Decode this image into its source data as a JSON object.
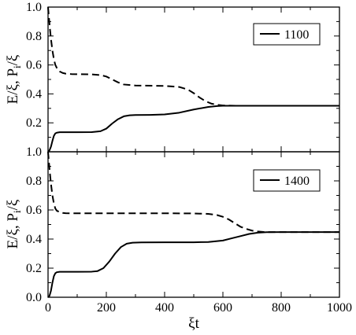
{
  "chart_data": [
    {
      "type": "line",
      "panel": "top",
      "xlim": [
        0,
        1000
      ],
      "ylim": [
        0,
        1.0
      ],
      "yticks": [
        "1.0",
        "0.8",
        "0.6",
        "0.4",
        "0.2"
      ],
      "ylabel_parts": {
        "a": "E/ξ,  P",
        "sub": "i",
        "b": "/ξ"
      },
      "legend": {
        "label": "1100",
        "placement": "top-right"
      },
      "grid": false,
      "series": [
        {
          "style": "dashed",
          "x": [
            0,
            3,
            6,
            10,
            15,
            20,
            25,
            30,
            40,
            50,
            60,
            80,
            100,
            150,
            180,
            200,
            220,
            240,
            260,
            300,
            400,
            450,
            480,
            500,
            520,
            540,
            560,
            580,
            600,
            650,
            700,
            800,
            900,
            1000
          ],
          "y": [
            1.0,
            0.93,
            0.86,
            0.78,
            0.7,
            0.64,
            0.6,
            0.58,
            0.555,
            0.545,
            0.54,
            0.537,
            0.536,
            0.535,
            0.53,
            0.52,
            0.5,
            0.48,
            0.465,
            0.458,
            0.455,
            0.448,
            0.43,
            0.405,
            0.375,
            0.35,
            0.333,
            0.325,
            0.32,
            0.318,
            0.318,
            0.318,
            0.318,
            0.318
          ]
        },
        {
          "style": "solid",
          "x": [
            0,
            5,
            10,
            15,
            20,
            25,
            30,
            40,
            50,
            60,
            100,
            150,
            180,
            200,
            220,
            240,
            260,
            280,
            300,
            350,
            400,
            450,
            500,
            550,
            580,
            600,
            650,
            700,
            800,
            900,
            1000
          ],
          "y": [
            0.0,
            0.01,
            0.035,
            0.075,
            0.11,
            0.127,
            0.132,
            0.135,
            0.135,
            0.135,
            0.135,
            0.136,
            0.142,
            0.16,
            0.195,
            0.225,
            0.245,
            0.252,
            0.254,
            0.255,
            0.258,
            0.27,
            0.292,
            0.31,
            0.316,
            0.318,
            0.318,
            0.318,
            0.318,
            0.318,
            0.318
          ]
        }
      ]
    },
    {
      "type": "line",
      "panel": "bottom",
      "xlim": [
        0,
        1000
      ],
      "ylim": [
        0,
        1.0
      ],
      "yticks": [
        "1.0",
        "0.8",
        "0.6",
        "0.4",
        "0.2",
        "0.0"
      ],
      "xticks": [
        "0",
        "200",
        "400",
        "600",
        "800",
        "1000"
      ],
      "xlabel": "ξt",
      "ylabel_parts": {
        "a": "E/ξ,  P",
        "sub": "i",
        "b": "/ξ"
      },
      "legend": {
        "label": "1400",
        "placement": "top-right"
      },
      "grid": false,
      "series": [
        {
          "style": "dashed",
          "x": [
            0,
            3,
            6,
            10,
            15,
            20,
            25,
            30,
            40,
            50,
            60,
            80,
            100,
            200,
            300,
            400,
            500,
            550,
            580,
            600,
            620,
            640,
            660,
            680,
            700,
            720,
            740,
            760,
            800,
            900,
            1000
          ],
          "y": [
            1.0,
            0.93,
            0.86,
            0.78,
            0.7,
            0.645,
            0.61,
            0.595,
            0.585,
            0.58,
            0.578,
            0.577,
            0.577,
            0.577,
            0.577,
            0.577,
            0.576,
            0.573,
            0.565,
            0.553,
            0.535,
            0.51,
            0.485,
            0.47,
            0.458,
            0.452,
            0.449,
            0.448,
            0.448,
            0.448,
            0.448
          ]
        },
        {
          "style": "solid",
          "x": [
            0,
            5,
            10,
            15,
            20,
            25,
            30,
            40,
            50,
            60,
            100,
            150,
            170,
            190,
            210,
            230,
            250,
            270,
            290,
            320,
            400,
            500,
            550,
            600,
            630,
            660,
            690,
            720,
            750,
            800,
            900,
            1000
          ],
          "y": [
            0.0,
            0.01,
            0.045,
            0.1,
            0.145,
            0.165,
            0.172,
            0.175,
            0.175,
            0.175,
            0.175,
            0.176,
            0.18,
            0.2,
            0.245,
            0.3,
            0.345,
            0.368,
            0.375,
            0.377,
            0.378,
            0.378,
            0.38,
            0.39,
            0.405,
            0.42,
            0.435,
            0.444,
            0.447,
            0.448,
            0.448,
            0.448
          ]
        }
      ]
    }
  ]
}
